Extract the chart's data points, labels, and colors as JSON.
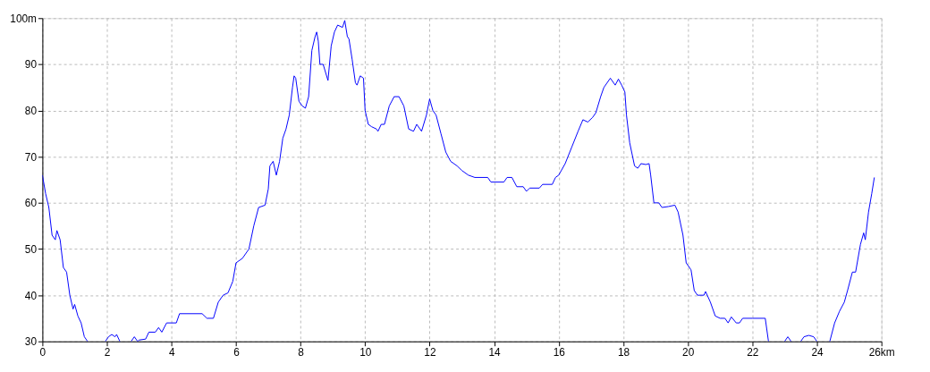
{
  "chart_data": {
    "type": "line",
    "x": [
      0,
      0.1,
      0.2,
      0.3,
      0.4,
      0.45,
      0.55,
      0.65,
      0.75,
      0.85,
      0.95,
      1.0,
      1.1,
      1.2,
      1.3,
      1.4,
      1.7,
      1.95,
      2.05,
      2.15,
      2.25,
      2.3,
      2.4,
      2.6,
      2.75,
      2.85,
      2.95,
      3.0,
      3.2,
      3.3,
      3.5,
      3.6,
      3.7,
      3.85,
      4.15,
      4.25,
      4.95,
      5.1,
      5.3,
      5.45,
      5.6,
      5.75,
      5.9,
      6.0,
      6.2,
      6.4,
      6.55,
      6.7,
      6.9,
      7.0,
      7.05,
      7.15,
      7.25,
      7.35,
      7.45,
      7.55,
      7.65,
      7.75,
      7.8,
      7.85,
      7.95,
      8.05,
      8.15,
      8.25,
      8.35,
      8.45,
      8.5,
      8.55,
      8.6,
      8.7,
      8.85,
      8.95,
      9.05,
      9.15,
      9.3,
      9.37,
      9.45,
      9.5,
      9.6,
      9.7,
      9.75,
      9.85,
      9.95,
      10.0,
      10.1,
      10.2,
      10.35,
      10.4,
      10.5,
      10.6,
      10.75,
      10.9,
      11.05,
      11.2,
      11.35,
      11.5,
      11.6,
      11.75,
      11.9,
      12.0,
      12.1,
      12.2,
      12.35,
      12.5,
      12.65,
      12.85,
      13.0,
      13.2,
      13.4,
      13.8,
      13.9,
      14.3,
      14.4,
      14.55,
      14.7,
      14.9,
      15.0,
      15.1,
      15.4,
      15.5,
      15.8,
      15.9,
      16.0,
      16.2,
      16.4,
      16.6,
      16.75,
      16.9,
      17.05,
      17.15,
      17.3,
      17.4,
      17.6,
      17.75,
      17.85,
      17.95,
      18.05,
      18.1,
      18.2,
      18.35,
      18.45,
      18.55,
      18.7,
      18.8,
      18.85,
      18.95,
      19.1,
      19.2,
      19.4,
      19.6,
      19.7,
      19.85,
      19.95,
      20.1,
      20.2,
      20.3,
      20.5,
      20.55,
      20.7,
      20.85,
      21.0,
      21.15,
      21.25,
      21.35,
      21.5,
      21.6,
      21.7,
      22.0,
      22.4,
      22.5,
      22.75,
      23.0,
      23.1,
      23.2,
      23.35,
      23.5,
      23.6,
      23.75,
      23.9,
      24.0,
      24.2,
      24.4,
      24.55,
      24.7,
      24.85,
      24.95,
      25.1,
      25.2,
      25.35,
      25.45,
      25.5,
      25.6,
      25.7,
      25.78
    ],
    "series": [
      {
        "color": "#0000ff",
        "values": [
          66,
          62,
          59,
          53,
          52,
          54,
          52,
          46,
          45,
          40,
          37,
          38,
          35.5,
          34,
          31,
          30,
          null,
          30,
          31,
          31.5,
          31,
          31.5,
          30,
          null,
          30,
          31,
          30,
          30.3,
          30.5,
          32,
          32,
          33,
          32,
          34,
          34,
          36,
          36,
          35,
          35,
          38.5,
          40,
          40.5,
          43,
          47,
          48,
          50,
          55,
          59,
          59.5,
          63,
          68,
          69,
          66,
          69,
          74,
          76,
          79,
          85,
          87.5,
          87,
          82,
          81,
          80.5,
          83,
          93,
          96,
          97,
          95,
          90,
          90,
          86.5,
          94,
          97,
          98.5,
          98,
          99.5,
          96,
          95.5,
          91,
          86,
          85.5,
          87.5,
          87,
          80,
          77,
          76.5,
          76,
          75.5,
          77,
          77,
          81,
          83,
          83,
          81,
          76,
          75.5,
          77,
          75.5,
          79,
          82.5,
          80,
          79,
          75,
          71,
          69,
          68,
          67,
          66,
          65.5,
          65.5,
          64.5,
          64.5,
          65.5,
          65.5,
          63.5,
          63.5,
          62.5,
          63.2,
          63.2,
          64,
          64,
          65.5,
          66,
          68.5,
          72,
          75.5,
          78,
          77.5,
          78.5,
          79.5,
          83,
          85,
          87,
          85.5,
          86.8,
          85.5,
          84,
          79,
          73,
          68,
          67.5,
          68.5,
          68.3,
          68.5,
          66,
          60,
          60,
          59,
          59.2,
          59.5,
          58,
          53,
          47,
          45.5,
          41,
          40,
          40,
          40.8,
          38.5,
          35.5,
          35,
          35,
          34,
          35.3,
          34,
          34,
          35,
          35,
          35,
          30,
          null,
          30,
          31,
          30,
          null,
          30,
          31,
          31.3,
          31,
          30,
          null,
          30,
          34,
          36.5,
          38.5,
          41,
          45,
          45,
          51,
          53.5,
          52,
          58,
          62,
          65.5
        ]
      }
    ],
    "xlim": [
      0,
      26
    ],
    "xticks": [
      0,
      2,
      4,
      6,
      8,
      10,
      12,
      14,
      16,
      18,
      20,
      22,
      24,
      {
        "value": 26,
        "label": "26km"
      }
    ],
    "ylim": [
      30,
      100
    ],
    "yticks": [
      30,
      40,
      50,
      60,
      70,
      80,
      90,
      {
        "value": 100,
        "label": "100m"
      }
    ],
    "grid": true,
    "marker": "none",
    "line_style": "solid"
  }
}
